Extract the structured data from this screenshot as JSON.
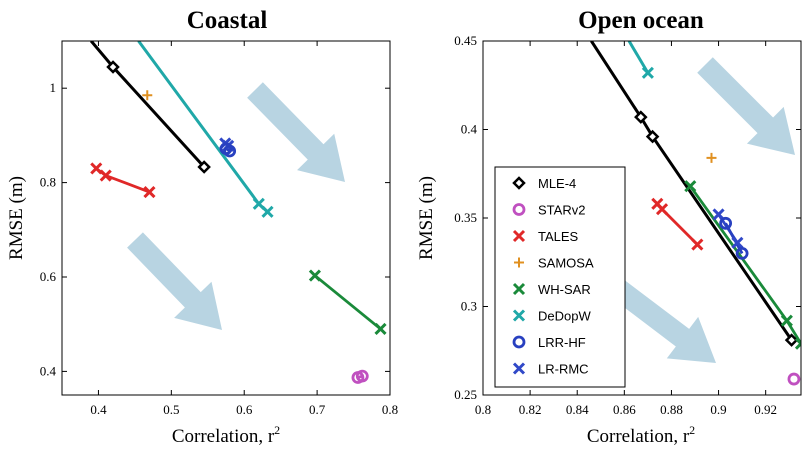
{
  "colors": {
    "MLE-4": "#000000",
    "STARv2": "#c050c0",
    "TALES": "#e02828",
    "SAMOSA": "#e09020",
    "WH-SAR": "#1a8a3a",
    "DeDopW": "#20a8a8",
    "LRR-HF": "#2840c0",
    "LR-RMC": "#3048c8",
    "arrow": "#b8d4e2"
  },
  "legend": {
    "placement": "inside-right-panel-lower-left",
    "items": [
      {
        "name": "MLE-4",
        "marker": "diamond"
      },
      {
        "name": "STARv2",
        "marker": "circle"
      },
      {
        "name": "TALES",
        "marker": "x"
      },
      {
        "name": "SAMOSA",
        "marker": "plus"
      },
      {
        "name": "WH-SAR",
        "marker": "x"
      },
      {
        "name": "DeDopW",
        "marker": "x"
      },
      {
        "name": "LRR-HF",
        "marker": "circle"
      },
      {
        "name": "LR-RMC",
        "marker": "x"
      }
    ]
  },
  "chart_data": [
    {
      "type": "line",
      "title": "Coastal",
      "xlabel": "Correlation, r",
      "xlabel_sup": "2",
      "ylabel": "RMSE (m)",
      "xlim": [
        0.35,
        0.8
      ],
      "ylim": [
        0.35,
        1.1
      ],
      "xticks": [
        "0.4",
        "0.5",
        "0.6",
        "0.7",
        "0.8"
      ],
      "xtick_values": [
        0.4,
        0.5,
        0.6,
        0.7,
        0.8
      ],
      "yticks": [
        "0.4",
        "0.6",
        "0.8",
        "1"
      ],
      "ytick_values": [
        0.4,
        0.6,
        0.8,
        1.0
      ],
      "grid": false,
      "series": [
        {
          "name": "MLE-4",
          "marker": "diamond",
          "x": [
            0.39,
            0.42,
            0.545
          ],
          "y": [
            1.1,
            1.045,
            0.833
          ],
          "markers": [
            1,
            2
          ]
        },
        {
          "name": "DeDopW",
          "marker": "x",
          "x": [
            0.455,
            0.62,
            0.632
          ],
          "y": [
            1.1,
            0.755,
            0.738
          ],
          "markers": [
            1,
            2
          ]
        },
        {
          "name": "SAMOSA",
          "marker": "plus",
          "x": [
            0.467
          ],
          "y": [
            0.985
          ],
          "markers": [
            0
          ]
        },
        {
          "name": "TALES",
          "marker": "x",
          "x": [
            0.397,
            0.41,
            0.47
          ],
          "y": [
            0.83,
            0.815,
            0.78
          ],
          "markers": [
            0,
            1,
            2
          ]
        },
        {
          "name": "LR-RMC",
          "marker": "x",
          "x": [
            0.574,
            0.578
          ],
          "y": [
            0.883,
            0.878
          ],
          "markers": [
            0,
            1
          ]
        },
        {
          "name": "LRR-HF",
          "marker": "circle",
          "x": [
            0.575,
            0.58
          ],
          "y": [
            0.872,
            0.867
          ],
          "markers": [
            0,
            1
          ]
        },
        {
          "name": "WH-SAR",
          "marker": "x",
          "x": [
            0.697,
            0.787
          ],
          "y": [
            0.603,
            0.49
          ],
          "markers": [
            0,
            1
          ]
        },
        {
          "name": "STARv2",
          "marker": "circle",
          "x": [
            0.756,
            0.762
          ],
          "y": [
            0.387,
            0.39
          ],
          "markers": [
            0,
            1
          ]
        }
      ]
    },
    {
      "type": "line",
      "title": "Open ocean",
      "xlabel": "Correlation, r",
      "xlabel_sup": "2",
      "ylabel": "RMSE (m)",
      "xlim": [
        0.8,
        0.935
      ],
      "ylim": [
        0.25,
        0.45
      ],
      "xticks": [
        "0.8",
        "0.82",
        "0.84",
        "0.86",
        "0.88",
        "0.9",
        "0.92"
      ],
      "xtick_values": [
        0.8,
        0.82,
        0.84,
        0.86,
        0.88,
        0.9,
        0.92
      ],
      "yticks": [
        "0.25",
        "0.3",
        "0.35",
        "0.4",
        "0.45"
      ],
      "ytick_values": [
        0.25,
        0.3,
        0.35,
        0.4,
        0.45
      ],
      "grid": false,
      "series": [
        {
          "name": "MLE-4",
          "marker": "diamond",
          "x": [
            0.846,
            0.867,
            0.872,
            0.931
          ],
          "y": [
            0.45,
            0.407,
            0.396,
            0.281
          ],
          "markers": [
            1,
            2,
            3
          ]
        },
        {
          "name": "DeDopW",
          "marker": "x",
          "x": [
            0.862,
            0.87
          ],
          "y": [
            0.45,
            0.432
          ],
          "markers": [
            1
          ]
        },
        {
          "name": "SAMOSA",
          "marker": "plus",
          "x": [
            0.897
          ],
          "y": [
            0.384
          ],
          "markers": [
            0
          ]
        },
        {
          "name": "TALES",
          "marker": "x",
          "x": [
            0.874,
            0.876,
            0.891
          ],
          "y": [
            0.358,
            0.355,
            0.335
          ],
          "markers": [
            0,
            1,
            2
          ]
        },
        {
          "name": "WH-SAR",
          "marker": "x",
          "x": [
            0.888,
            0.929,
            0.935
          ],
          "y": [
            0.368,
            0.292,
            0.279
          ],
          "markers": [
            0,
            1,
            2
          ]
        },
        {
          "name": "LR-RMC",
          "marker": "x",
          "x": [
            0.9,
            0.908
          ],
          "y": [
            0.352,
            0.336
          ],
          "markers": [
            0,
            1
          ]
        },
        {
          "name": "LRR-HF",
          "marker": "circle",
          "x": [
            0.903,
            0.91
          ],
          "y": [
            0.347,
            0.33
          ],
          "markers": [
            0,
            1
          ]
        },
        {
          "name": "STARv2",
          "marker": "circle",
          "x": [
            0.932
          ],
          "y": [
            0.259
          ],
          "markers": [
            0
          ]
        }
      ]
    }
  ]
}
